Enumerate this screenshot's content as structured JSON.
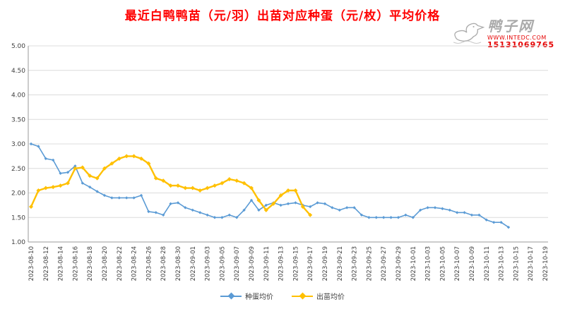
{
  "watermark": {
    "site_name": "鸭子网",
    "url_text": "WWW.INTEDC.COM",
    "phone_text": "15131069765"
  },
  "chart_data": {
    "type": "line",
    "title": "最近白鸭鸭苗（元/羽）出苗对应种蛋（元/枚）平均价格",
    "title_color": "#ff0000",
    "x_start_date": "2023-08-10",
    "x_end_date": "2023-10-19",
    "x_total_days": 71,
    "x_tick_step_days": 2,
    "x_tick_labels": [
      "2023-08-10",
      "2023-08-12",
      "2023-08-14",
      "2023-08-16",
      "2023-08-18",
      "2023-08-20",
      "2023-08-22",
      "2023-08-24",
      "2023-08-26",
      "2023-08-28",
      "2023-08-30",
      "2023-09-01",
      "2023-09-03",
      "2023-09-05",
      "2023-09-07",
      "2023-09-09",
      "2023-09-11",
      "2023-09-13",
      "2023-09-15",
      "2023-09-17",
      "2023-09-19",
      "2023-09-21",
      "2023-09-23",
      "2023-09-25",
      "2023-09-27",
      "2023-09-29",
      "2023-10-01",
      "2023-10-03",
      "2023-10-05",
      "2023-10-07",
      "2023-10-09",
      "2023-10-11",
      "2023-10-13",
      "2023-10-15",
      "2023-10-17",
      "2023-10-19"
    ],
    "ylim": [
      1.0,
      5.0
    ],
    "y_tick_labels": [
      "5.00",
      "4.50",
      "4.00",
      "3.50",
      "3.00",
      "2.50",
      "2.00",
      "1.50",
      "1.00"
    ],
    "grid": true,
    "legend_position": "bottom-center",
    "series": [
      {
        "name": "种蛋均价",
        "color": "#5B9BD5",
        "start_index": 0,
        "values": [
          3.0,
          2.95,
          2.7,
          2.67,
          2.4,
          2.42,
          2.55,
          2.2,
          2.12,
          2.03,
          1.95,
          1.9,
          1.9,
          1.9,
          1.9,
          1.95,
          1.62,
          1.6,
          1.55,
          1.78,
          1.8,
          1.7,
          1.65,
          1.6,
          1.55,
          1.5,
          1.5,
          1.55,
          1.5,
          1.65,
          1.85,
          1.65,
          1.75,
          1.8,
          1.75,
          1.78,
          1.8,
          1.75,
          1.72,
          1.8,
          1.78,
          1.7,
          1.65,
          1.7,
          1.7,
          1.55,
          1.5,
          1.5,
          1.5,
          1.5,
          1.5,
          1.55,
          1.5,
          1.65,
          1.7,
          1.7,
          1.68,
          1.65,
          1.6,
          1.6,
          1.55,
          1.55,
          1.45,
          1.4,
          1.4,
          1.3
        ]
      },
      {
        "name": "出苗均价",
        "color": "#FFC000",
        "start_index": 0,
        "values": [
          1.72,
          2.05,
          2.1,
          2.12,
          2.15,
          2.2,
          2.5,
          2.52,
          2.35,
          2.3,
          2.5,
          2.6,
          2.7,
          2.75,
          2.75,
          2.7,
          2.6,
          2.3,
          2.25,
          2.15,
          2.15,
          2.1,
          2.1,
          2.05,
          2.1,
          2.15,
          2.2,
          2.28,
          2.25,
          2.2,
          2.1,
          1.85,
          1.65,
          1.78,
          1.95,
          2.05,
          2.05,
          1.72,
          1.55
        ]
      }
    ]
  }
}
